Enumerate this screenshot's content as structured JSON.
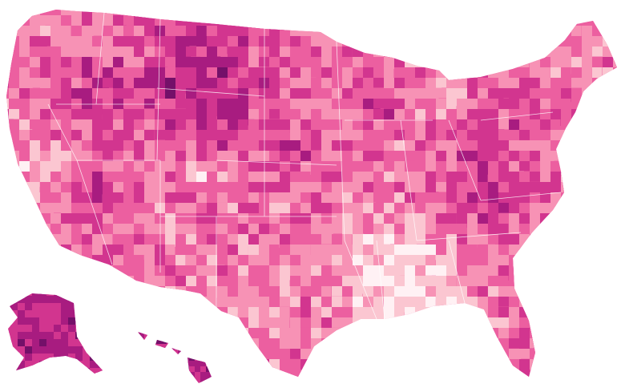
{
  "map": {
    "palette": [
      "#fff1f4",
      "#fbc6d1",
      "#f792b5",
      "#ec5fa0",
      "#d2358f",
      "#a81c80",
      "#741069"
    ]
  }
}
